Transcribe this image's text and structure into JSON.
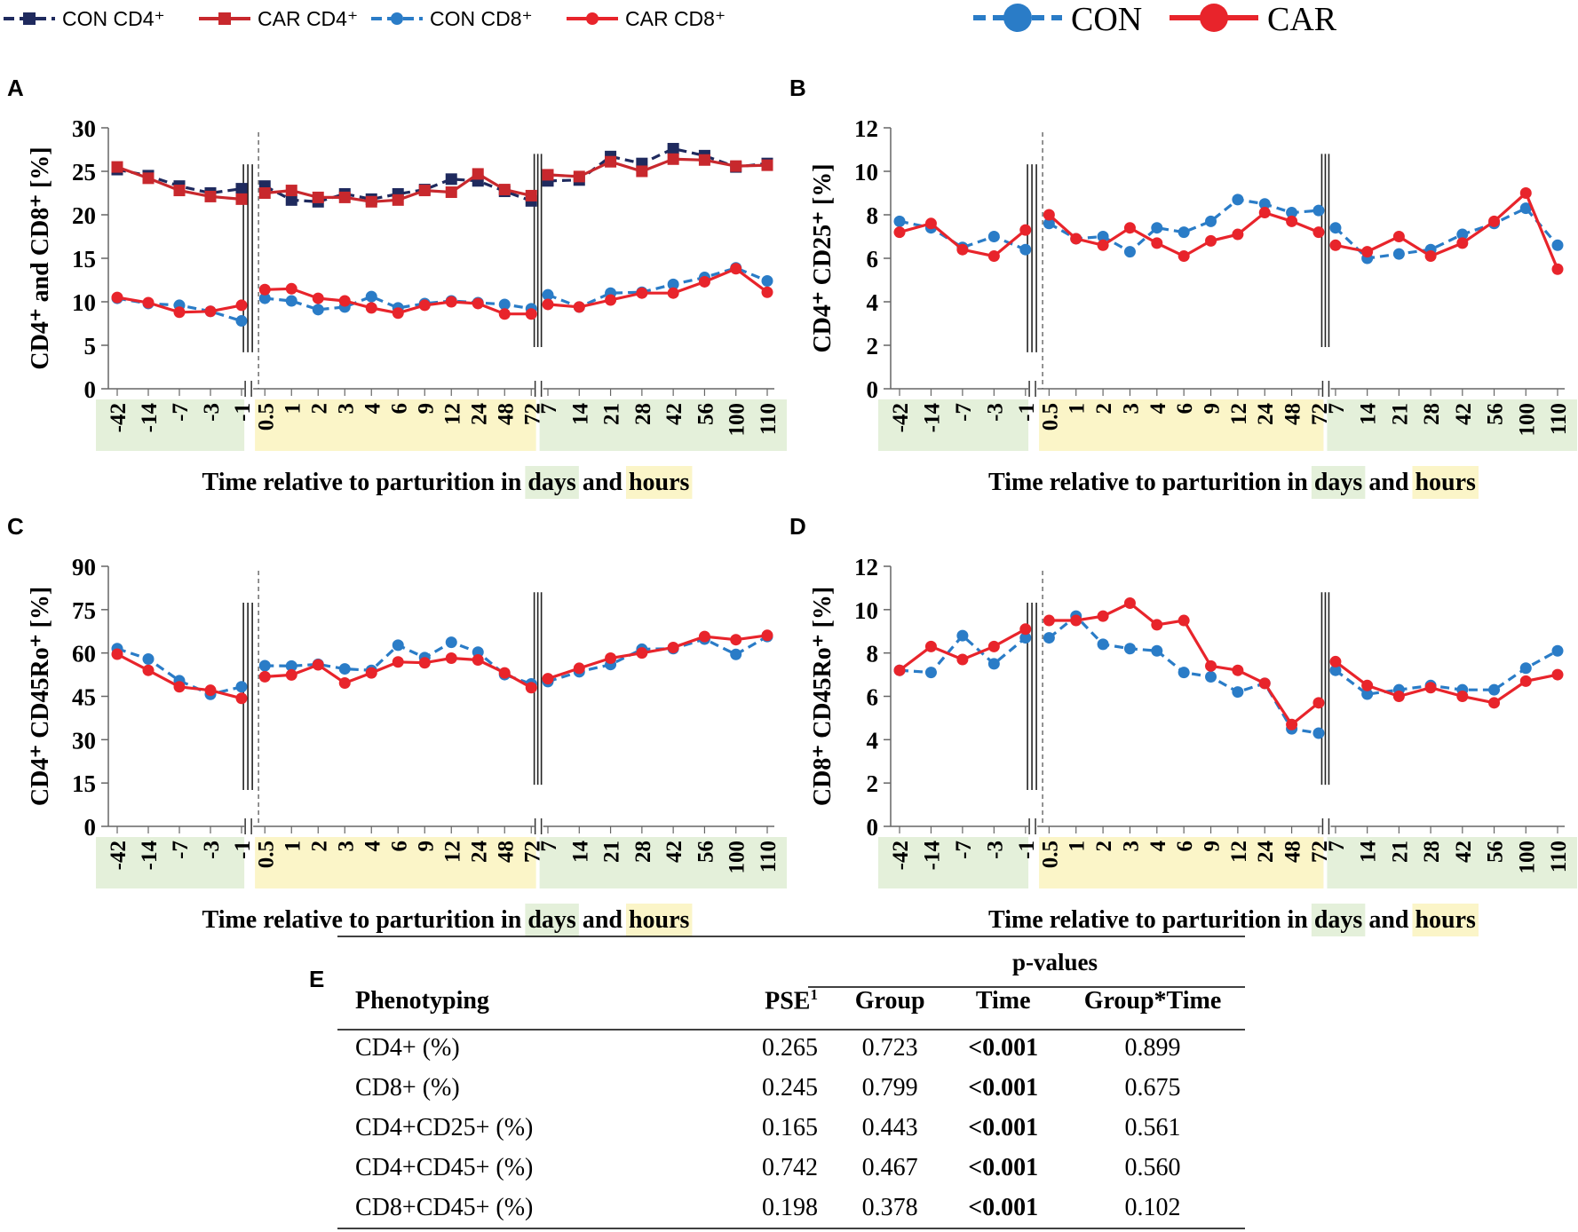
{
  "legend_top": {
    "items": [
      {
        "label": "CON CD4⁺",
        "color": "#1f2a5e",
        "dash": true,
        "marker": "square"
      },
      {
        "label": "CAR CD4⁺",
        "color": "#c8282d",
        "dash": false,
        "marker": "square"
      },
      {
        "label": "CON CD8⁺",
        "color": "#2a7cc7",
        "dash": true,
        "marker": "circle"
      },
      {
        "label": "CAR CD8⁺",
        "color": "#e8242b",
        "dash": false,
        "marker": "circle"
      }
    ],
    "big": [
      {
        "label": "CON",
        "color": "#2a7cc7",
        "dash": true
      },
      {
        "label": "CAR",
        "color": "#e8242b",
        "dash": false
      }
    ]
  },
  "xaxis": {
    "categories": [
      "-42",
      "-14",
      "-7",
      "-3",
      "-1",
      "0.5",
      "1",
      "2",
      "3",
      "4",
      "6",
      "9",
      "12",
      "24",
      "48",
      "72",
      "7",
      "14",
      "21",
      "28",
      "42",
      "56",
      "100",
      "110"
    ],
    "groups": [
      "days",
      "hours",
      "days"
    ],
    "title_prefix": "Time relative to parturition in",
    "title_days": "days",
    "title_and": "and",
    "title_hours": "hours",
    "days_color": "#e4f0da",
    "hours_color": "#fbf5c8"
  },
  "chart_data": [
    {
      "panel": "A",
      "type": "line",
      "ylabel": "CD4⁺ and CD8⁺ [%]",
      "ylim": [
        0,
        30
      ],
      "yticks": [
        0,
        5,
        10,
        15,
        20,
        25,
        30
      ],
      "series": [
        {
          "name": "CON CD4⁺",
          "color": "#1f2a5e",
          "dash": true,
          "marker": "square",
          "values": [
            25.2,
            24.5,
            23.3,
            22.5,
            23.0,
            23.3,
            21.7,
            21.5,
            22.4,
            21.8,
            22.4,
            22.9,
            24.1,
            23.9,
            22.7,
            21.6,
            23.9,
            24.0,
            26.7,
            25.9,
            27.6,
            26.8,
            25.5,
            25.9
          ]
        },
        {
          "name": "CAR CD4⁺",
          "color": "#c8282d",
          "dash": false,
          "marker": "square",
          "values": [
            25.5,
            24.2,
            22.8,
            22.1,
            21.8,
            22.5,
            22.8,
            22.0,
            22.0,
            21.5,
            21.7,
            22.8,
            22.6,
            24.7,
            22.9,
            22.2,
            24.6,
            24.4,
            26.1,
            25.0,
            26.4,
            26.3,
            25.6,
            25.7
          ]
        },
        {
          "name": "CON CD8⁺",
          "color": "#2a7cc7",
          "dash": true,
          "marker": "circle",
          "values": [
            10.4,
            9.8,
            9.6,
            8.9,
            7.8,
            10.4,
            10.1,
            9.1,
            9.4,
            10.6,
            9.3,
            9.8,
            10.1,
            9.9,
            9.7,
            9.2,
            10.8,
            9.4,
            11.0,
            11.1,
            12.0,
            12.8,
            13.9,
            12.4
          ]
        },
        {
          "name": "CAR CD8⁺",
          "color": "#e8242b",
          "dash": false,
          "marker": "circle",
          "values": [
            10.5,
            9.9,
            8.8,
            8.9,
            9.6,
            11.4,
            11.5,
            10.4,
            10.1,
            9.3,
            8.7,
            9.6,
            10.0,
            9.8,
            8.6,
            8.6,
            9.7,
            9.4,
            10.2,
            11.0,
            11.0,
            12.3,
            13.8,
            11.1
          ]
        }
      ]
    },
    {
      "panel": "B",
      "type": "line",
      "ylabel": "CD4⁺ CD25⁺ [%]",
      "ylim": [
        0,
        12
      ],
      "yticks": [
        0,
        2,
        4,
        6,
        8,
        10,
        12
      ],
      "series": [
        {
          "name": "CON",
          "color": "#2a7cc7",
          "dash": true,
          "marker": "circle",
          "values": [
            7.7,
            7.4,
            6.5,
            7.0,
            6.4,
            7.6,
            6.9,
            7.0,
            6.3,
            7.4,
            7.2,
            7.7,
            8.7,
            8.5,
            8.1,
            8.2,
            7.4,
            6.0,
            6.2,
            6.4,
            7.1,
            7.6,
            8.3,
            6.6
          ]
        },
        {
          "name": "CAR",
          "color": "#e8242b",
          "dash": false,
          "marker": "circle",
          "values": [
            7.2,
            7.6,
            6.4,
            6.1,
            7.3,
            8.0,
            6.9,
            6.6,
            7.4,
            6.7,
            6.1,
            6.8,
            7.1,
            8.1,
            7.7,
            7.2,
            6.6,
            6.3,
            7.0,
            6.1,
            6.7,
            7.7,
            9.0,
            5.5
          ]
        }
      ]
    },
    {
      "panel": "C",
      "type": "line",
      "ylabel": "CD4⁺ CD45Ro⁺ [%]",
      "ylim": [
        0,
        90
      ],
      "yticks": [
        0,
        15,
        30,
        45,
        60,
        75,
        90
      ],
      "series": [
        {
          "name": "CON",
          "color": "#2a7cc7",
          "dash": true,
          "marker": "circle",
          "values": [
            61.5,
            57.9,
            50.4,
            45.7,
            48.3,
            55.6,
            55.5,
            56.1,
            54.5,
            54.0,
            62.7,
            58.4,
            63.7,
            60.3,
            52.5,
            49.3,
            50.1,
            53.5,
            56.0,
            61.3,
            61.5,
            64.8,
            59.5,
            65.7
          ]
        },
        {
          "name": "CAR",
          "color": "#e8242b",
          "dash": false,
          "marker": "circle",
          "values": [
            59.6,
            54.0,
            48.3,
            47.1,
            44.3,
            51.8,
            52.4,
            55.9,
            49.6,
            53.1,
            56.9,
            56.6,
            58.2,
            57.6,
            53.1,
            48.0,
            51.1,
            54.7,
            58.2,
            60.0,
            61.9,
            65.7,
            64.6,
            66.1
          ]
        }
      ]
    },
    {
      "panel": "D",
      "type": "line",
      "ylabel": "CD8⁺ CD45Ro⁺ [%]",
      "ylim": [
        0,
        12
      ],
      "yticks": [
        0,
        2,
        4,
        6,
        8,
        10,
        12
      ],
      "series": [
        {
          "name": "CON",
          "color": "#2a7cc7",
          "dash": true,
          "marker": "circle",
          "values": [
            7.2,
            7.1,
            8.8,
            7.5,
            8.7,
            8.7,
            9.7,
            8.4,
            8.2,
            8.1,
            7.1,
            6.9,
            6.2,
            6.6,
            4.5,
            4.3,
            7.2,
            6.1,
            6.3,
            6.5,
            6.3,
            6.3,
            7.3,
            8.1
          ]
        },
        {
          "name": "CAR",
          "color": "#e8242b",
          "dash": false,
          "marker": "circle",
          "values": [
            7.2,
            8.3,
            7.7,
            8.3,
            9.1,
            9.5,
            9.5,
            9.7,
            10.3,
            9.3,
            9.5,
            7.4,
            7.2,
            6.6,
            4.7,
            5.7,
            7.6,
            6.5,
            6.0,
            6.4,
            6.0,
            5.7,
            6.7,
            7.0
          ]
        }
      ]
    }
  ],
  "panel_labels": [
    "A",
    "B",
    "C",
    "D",
    "E"
  ],
  "table": {
    "group_header": "p-values",
    "headers": [
      "Phenotyping",
      "PSE",
      "Group",
      "Time",
      "Group*Time"
    ],
    "pse_sup": "1",
    "rows": [
      [
        "CD4+ (%)",
        "0.265",
        "0.723",
        "<0.001",
        "0.899"
      ],
      [
        "CD8+ (%)",
        "0.245",
        "0.799",
        "<0.001",
        "0.675"
      ],
      [
        "CD4+CD25+ (%)",
        "0.165",
        "0.443",
        "<0.001",
        "0.561"
      ],
      [
        "CD4+CD45+ (%)",
        "0.742",
        "0.467",
        "<0.001",
        "0.560"
      ],
      [
        "CD8+CD45+ (%)",
        "0.198",
        "0.378",
        "<0.001",
        "0.102"
      ]
    ]
  }
}
